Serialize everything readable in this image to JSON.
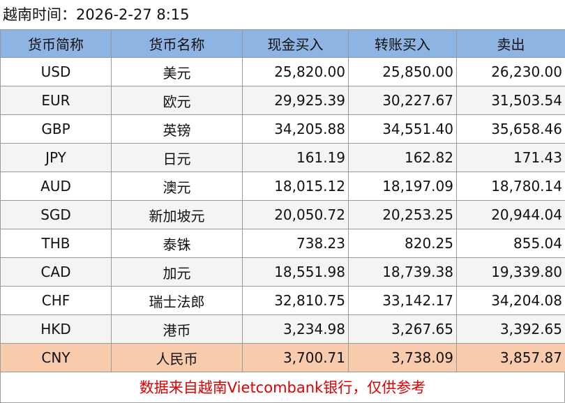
{
  "header": {
    "title": "越南时间：2026-2-27 8:15"
  },
  "table": {
    "columns": [
      "货币简称",
      "货币名称",
      "现金买入",
      "转账买入",
      "卖出"
    ],
    "rows": [
      {
        "code": "USD",
        "name": "美元",
        "cash_buy": "25,820.00",
        "transfer_buy": "25,850.00",
        "sell": "26,230.00"
      },
      {
        "code": "EUR",
        "name": "欧元",
        "cash_buy": "29,925.39",
        "transfer_buy": "30,227.67",
        "sell": "31,503.54"
      },
      {
        "code": "GBP",
        "name": "英镑",
        "cash_buy": "34,205.88",
        "transfer_buy": "34,551.40",
        "sell": "35,658.46"
      },
      {
        "code": "JPY",
        "name": "日元",
        "cash_buy": "161.19",
        "transfer_buy": "162.82",
        "sell": "171.43"
      },
      {
        "code": "AUD",
        "name": "澳元",
        "cash_buy": "18,015.12",
        "transfer_buy": "18,197.09",
        "sell": "18,780.14"
      },
      {
        "code": "SGD",
        "name": "新加坡元",
        "cash_buy": "20,050.72",
        "transfer_buy": "20,253.25",
        "sell": "20,944.04"
      },
      {
        "code": "THB",
        "name": "泰铢",
        "cash_buy": "738.23",
        "transfer_buy": "820.25",
        "sell": "855.04"
      },
      {
        "code": "CAD",
        "name": "加元",
        "cash_buy": "18,551.98",
        "transfer_buy": "18,739.38",
        "sell": "19,339.80"
      },
      {
        "code": "CHF",
        "name": "瑞士法郎",
        "cash_buy": "32,810.75",
        "transfer_buy": "33,142.17",
        "sell": "34,204.08"
      },
      {
        "code": "HKD",
        "name": "港币",
        "cash_buy": "3,234.98",
        "transfer_buy": "3,267.65",
        "sell": "3,392.65"
      },
      {
        "code": "CNY",
        "name": "人民币",
        "cash_buy": "3,700.71",
        "transfer_buy": "3,738.09",
        "sell": "3,857.87"
      }
    ],
    "highlight_row": "CNY",
    "header_color": "#8eb4e3",
    "highlight_color": "#f8cbad"
  },
  "footer": {
    "note": "数据来自越南Vietcombank银行，仅供参考",
    "color": "#e00000"
  }
}
